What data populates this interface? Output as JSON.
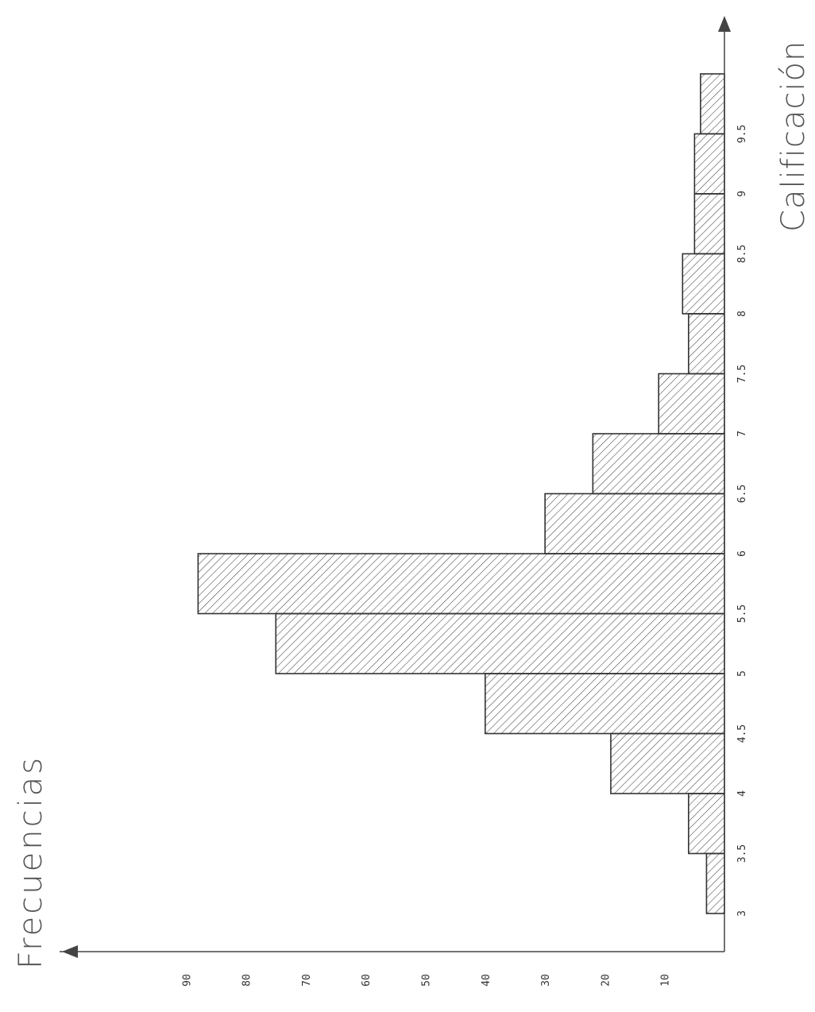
{
  "chart_data": {
    "type": "bar",
    "title": "",
    "xlabel": "Calificación",
    "ylabel": "Frecuencias",
    "categories": [
      "3",
      "3.5",
      "4",
      "4.5",
      "5",
      "5.5",
      "6",
      "6.5",
      "7",
      "7.5",
      "8",
      "8.5",
      "9",
      "9.5"
    ],
    "values": [
      3,
      6,
      19,
      40,
      75,
      88,
      30,
      22,
      11,
      6,
      7,
      5,
      5,
      4
    ],
    "y_ticks": [
      "10",
      "20",
      "30",
      "40",
      "50",
      "60",
      "70",
      "80",
      "90"
    ],
    "ylim": [
      0,
      100
    ],
    "grid": false,
    "hatch": true,
    "colors": {
      "outline": "#333333",
      "hatch": "#444444",
      "axis": "#444444"
    }
  }
}
